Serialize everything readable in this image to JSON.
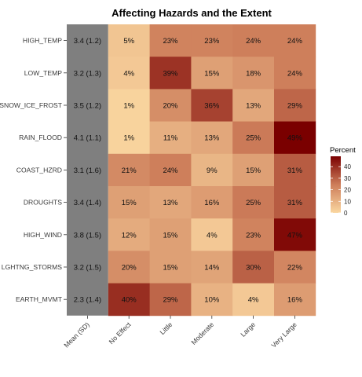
{
  "chart_data": {
    "type": "heatmap",
    "title": "Affecting Hazards and the Extent",
    "columns": [
      "Mean (SD)",
      "No Effect",
      "Little",
      "Moderate",
      "Large",
      "Very Large"
    ],
    "rows": [
      "HIGH_TEMP",
      "LOW_TEMP",
      "SNOW_ICE_FROST",
      "RAIN_FLOOD",
      "COAST_HZRD",
      "DROUGHTS",
      "HIGH_WIND",
      "LGHTNG_STORMS",
      "EARTH_MVMT"
    ],
    "mean_sd": [
      "3.4 (1.2)",
      "3.2 (1.3)",
      "3.5 (1.2)",
      "4.1 (1.1)",
      "3.1 (1.6)",
      "3.4 (1.4)",
      "3.8 (1.5)",
      "3.2 (1.5)",
      "2.3 (1.4)"
    ],
    "values": [
      [
        5,
        23,
        23,
        24,
        24
      ],
      [
        4,
        39,
        15,
        18,
        24
      ],
      [
        1,
        20,
        36,
        13,
        29
      ],
      [
        1,
        11,
        13,
        25,
        49
      ],
      [
        21,
        24,
        9,
        15,
        31
      ],
      [
        15,
        13,
        16,
        25,
        31
      ],
      [
        12,
        15,
        4,
        23,
        47
      ],
      [
        20,
        15,
        14,
        30,
        22
      ],
      [
        40,
        29,
        10,
        4,
        16
      ]
    ],
    "value_suffix": "%",
    "legend": {
      "title": "Percent",
      "ticks": [
        0,
        10,
        20,
        30,
        40
      ],
      "range": [
        0,
        49
      ],
      "placement": "right"
    },
    "colors": {
      "low": "#fad7a0",
      "mid": "#cd7d5a",
      "high": "#7a0000",
      "mean_column": "#7f7f7f"
    },
    "grid": false
  }
}
